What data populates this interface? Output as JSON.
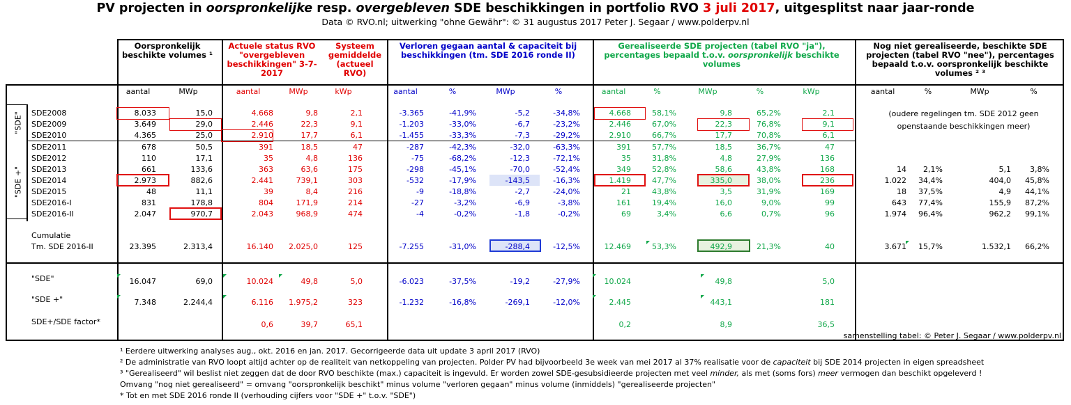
{
  "title": {
    "p1": "PV projecten in ",
    "p2": "oorspronkelijke",
    "p3": " resp. ",
    "p4": "overgebleven",
    "p5": " SDE beschikkingen in portfolio RVO ",
    "p6": "3 juli 2017",
    "p7": ", uitgesplitst naar jaar-ronde"
  },
  "subtitle": "Data © RVO.nl; uitwerking \"ohne Gewähr\": © 31 augustus 2017 Peter J. Segaar / www.polderpv.nl",
  "headers": {
    "orig": "Oorspronkelijk beschikte volumes ¹",
    "actueel": "Actuele status RVO \"overgebleven beschikkingen\" 3-7-2017",
    "systeem": "Systeem gemiddelde (actueel RVO)",
    "verloren": "Verloren gegaan aantal & capaciteit bij beschikkingen (tm. SDE 2016 ronde II)",
    "gerealiseerd_a": "Gerealiseerde SDE projecten (tabel RVO \"ja\"),",
    "gerealiseerd_b": "percentages bepaald t.o.v. ",
    "gerealiseerd_c": "oorspronkelijk",
    "gerealiseerd_d": " beschikte volumes",
    "nietgerealiseerd": "Nog niet gerealiseerde, beschikte SDE projecten (tabel RVO \"nee\"), percentages bepaald t.o.v. oorspronkelijk beschikte volumes ² ³"
  },
  "subheaders": [
    "aantal",
    "MWp",
    "aantal",
    "MWp",
    "kWp",
    "aantal",
    "%",
    "MWp",
    "%",
    "aantal",
    "%",
    "MWp",
    "%",
    "kWp",
    "aantal",
    "%",
    "MWp",
    "%"
  ],
  "group_labels": {
    "sde": "\"SDE\"",
    "sdeplus": "\"SDE +\""
  },
  "rows": [
    {
      "name": "SDE2008",
      "v": [
        "8.033",
        "15,0",
        "4.668",
        "9,8",
        "2,1",
        "-3.365",
        "-41,9%",
        "-5,2",
        "-34,8%",
        "4.668",
        "58,1%",
        "9,8",
        "65,2%",
        "2,1",
        "",
        "",
        "",
        ""
      ]
    },
    {
      "name": "SDE2009",
      "v": [
        "3.649",
        "29,0",
        "2.446",
        "22,3",
        "9,1",
        "-1.203",
        "-33,0%",
        "-6,7",
        "-23,2%",
        "2.446",
        "67,0%",
        "22,3",
        "76,8%",
        "9,1",
        "",
        "",
        "",
        ""
      ]
    },
    {
      "name": "SDE2010",
      "v": [
        "4.365",
        "25,0",
        "2.910",
        "17,7",
        "6,1",
        "-1.455",
        "-33,3%",
        "-7,3",
        "-29,2%",
        "2.910",
        "66,7%",
        "17,7",
        "70,8%",
        "6,1",
        "",
        "",
        "",
        ""
      ]
    },
    {
      "name": "SDE2011",
      "v": [
        "678",
        "50,5",
        "391",
        "18,5",
        "47",
        "-287",
        "-42,3%",
        "-32,0",
        "-63,3%",
        "391",
        "57,7%",
        "18,5",
        "36,7%",
        "47",
        "",
        "",
        "",
        ""
      ]
    },
    {
      "name": "SDE2012",
      "v": [
        "110",
        "17,1",
        "35",
        "4,8",
        "136",
        "-75",
        "-68,2%",
        "-12,3",
        "-72,1%",
        "35",
        "31,8%",
        "4,8",
        "27,9%",
        "136",
        "",
        "",
        "",
        ""
      ]
    },
    {
      "name": "SDE2013",
      "v": [
        "661",
        "133,6",
        "363",
        "63,6",
        "175",
        "-298",
        "-45,1%",
        "-70,0",
        "-52,4%",
        "349",
        "52,8%",
        "58,6",
        "43,8%",
        "168",
        "14",
        "2,1%",
        "5,1",
        "3,8%"
      ]
    },
    {
      "name": "SDE2014",
      "v": [
        "2.973",
        "882,6",
        "2.441",
        "739,1",
        "303",
        "-532",
        "-17,9%",
        "-143,5",
        "-16,3%",
        "1.419",
        "47,7%",
        "335,0",
        "38,0%",
        "236",
        "1.022",
        "34,4%",
        "404,0",
        "45,8%"
      ]
    },
    {
      "name": "SDE2015",
      "v": [
        "48",
        "11,1",
        "39",
        "8,4",
        "216",
        "-9",
        "-18,8%",
        "-2,7",
        "-24,0%",
        "21",
        "43,8%",
        "3,5",
        "31,9%",
        "169",
        "18",
        "37,5%",
        "4,9",
        "44,1%"
      ]
    },
    {
      "name": "SDE2016-I",
      "v": [
        "831",
        "178,8",
        "804",
        "171,9",
        "214",
        "-27",
        "-3,2%",
        "-6,9",
        "-3,8%",
        "161",
        "19,4%",
        "16,0",
        "9,0%",
        "99",
        "643",
        "77,4%",
        "155,9",
        "87,2%"
      ]
    },
    {
      "name": "SDE2016-II",
      "v": [
        "2.047",
        "970,7",
        "2.043",
        "968,9",
        "474",
        "-4",
        "-0,2%",
        "-1,8",
        "-0,2%",
        "69",
        "3,4%",
        "6,6",
        "0,7%",
        "96",
        "1.974",
        "96,4%",
        "962,2",
        "99,1%"
      ]
    }
  ],
  "old_note_1": "(oudere regelingen tm. SDE 2012 geen",
  "old_note_2": "openstaande beschikkingen meer)",
  "cumulatie": {
    "label1": "Cumulatie",
    "label2": "Tm. SDE 2016-II",
    "v": [
      "23.395",
      "2.313,4",
      "16.140",
      "2.025,0",
      "125",
      "-7.255",
      "-31,0%",
      "-288,4",
      "-12,5%",
      "12.469",
      "53,3%",
      "492,9",
      "21,3%",
      "40",
      "3.671",
      "15,7%",
      "1.532,1",
      "66,2%"
    ]
  },
  "summary": [
    {
      "name": "\"SDE\"",
      "v": [
        "16.047",
        "69,0",
        "10.024",
        "49,8",
        "5,0",
        "-6.023",
        "-37,5%",
        "-19,2",
        "-27,9%",
        "10.024",
        "",
        "49,8",
        "",
        "5,0",
        "",
        "",
        "",
        ""
      ]
    },
    {
      "name": "\"SDE +\"",
      "v": [
        "7.348",
        "2.244,4",
        "6.116",
        "1.975,2",
        "323",
        "-1.232",
        "-16,8%",
        "-269,1",
        "-12,0%",
        "2.445",
        "",
        "443,1",
        "",
        "181",
        "",
        "",
        "",
        ""
      ]
    },
    {
      "name": "SDE+/SDE factor*",
      "v": [
        "",
        "",
        "0,6",
        "39,7",
        "65,1",
        "",
        "",
        "",
        "",
        "0,2",
        "",
        "8,9",
        "",
        "36,5",
        "",
        "",
        "",
        ""
      ]
    }
  ],
  "credit": "samenstelling tabel: © Peter J. Segaar / www.polderpv.nl",
  "footnotes": {
    "f1": "¹ Eerdere uitwerking analyses aug., okt. 2016 en jan. 2017. Gecorrigeerde data uit update 3 april 2017 (RVO)",
    "f2a": "² De administratie van RVO loopt altijd achter op de realiteit van netkoppeling van projecten. Polder PV had bijvoorbeeld 3e week van mei 2017 al 37% realisatie voor de ",
    "f2b": "capaciteit",
    "f2c": " bij SDE 2014 projecten in eigen spreadsheet",
    "f3a": "³ \"Gerealiseerd\" wil beslist niet zeggen dat de door RVO beschikte (max.) capaciteit is ingevuld. Er worden zowel SDE-gesubsidieerde projecten met veel ",
    "f3b": "minder,",
    "f3c": " als met (soms fors) ",
    "f3d": "meer",
    "f3e": " vermogen dan beschikt opgeleverd !",
    "f4": "Omvang \"nog niet gerealiseerd\" = omvang \"oorspronkelijk beschikt\" minus volume \"verloren gegaan\" minus volume (inmiddels) \"gerealiseerde projecten\"",
    "f5": "* Tot en met SDE 2016 ronde II (verhouding cijfers voor \"SDE +\" t.o.v. \"SDE\")"
  }
}
